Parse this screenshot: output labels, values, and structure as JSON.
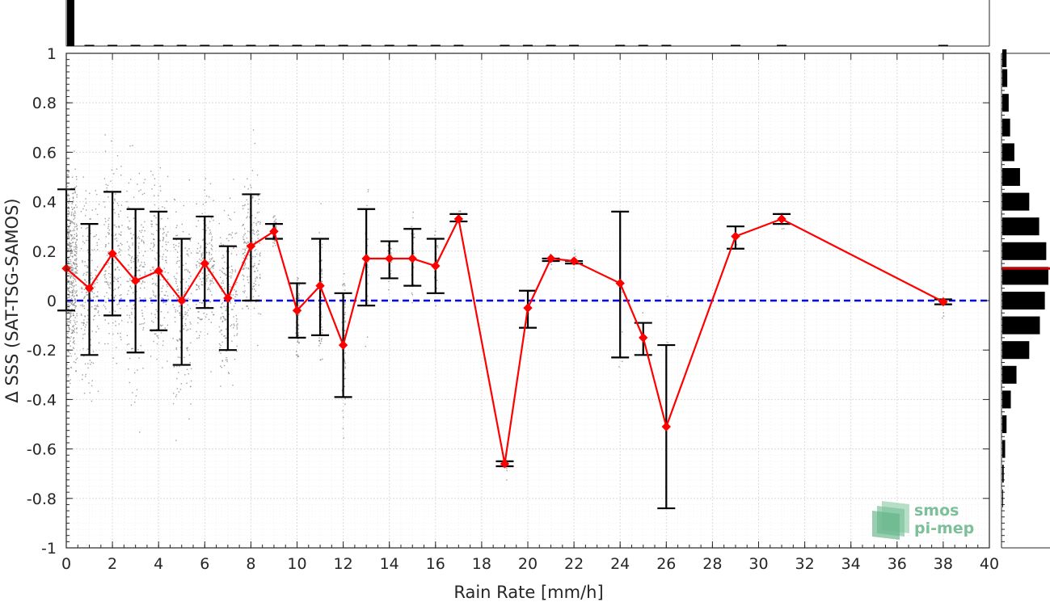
{
  "chart_data": {
    "type": "line",
    "xlabel": "Rain Rate [mm/h]",
    "ylabel": "Δ SSS (SAT-TSG-SAMOS)",
    "xlim": [
      0,
      40
    ],
    "ylim": [
      -1,
      1
    ],
    "x_ticks": [
      "0",
      "2",
      "4",
      "6",
      "8",
      "10",
      "12",
      "14",
      "16",
      "18",
      "20",
      "22",
      "24",
      "26",
      "28",
      "30",
      "32",
      "34",
      "36",
      "38",
      "40"
    ],
    "y_ticks": [
      "1",
      "0.8",
      "0.6",
      "0.4",
      "0.2",
      "0",
      "-0.2",
      "-0.4",
      "-0.6",
      "-0.8",
      "-1"
    ],
    "grid": true,
    "reference_line": {
      "y": 0,
      "color": "#0000ff",
      "style": "dashed"
    },
    "series": [
      {
        "color": "#ff0000",
        "x": [
          0,
          1,
          2,
          3,
          4,
          5,
          6,
          7,
          8,
          9,
          10,
          11,
          12,
          13,
          14,
          15,
          16,
          17,
          19,
          20,
          21,
          22,
          24,
          25,
          26,
          29,
          31,
          38
        ],
        "y": [
          0.13,
          0.05,
          0.19,
          0.08,
          0.12,
          0.0,
          0.15,
          0.01,
          0.22,
          0.28,
          -0.04,
          0.06,
          -0.18,
          0.17,
          0.17,
          0.17,
          0.14,
          0.33,
          -0.66,
          -0.03,
          0.17,
          0.16,
          0.07,
          -0.15,
          -0.51,
          0.26,
          0.33,
          -0.005
        ],
        "err_low": [
          -0.04,
          -0.22,
          -0.06,
          -0.21,
          -0.12,
          -0.26,
          -0.03,
          -0.2,
          0.0,
          0.25,
          -0.15,
          -0.14,
          -0.39,
          -0.02,
          0.09,
          0.06,
          0.03,
          0.32,
          -0.67,
          -0.11,
          0.16,
          0.15,
          -0.23,
          -0.22,
          -0.84,
          0.21,
          0.31,
          -0.015
        ],
        "err_high": [
          0.45,
          0.31,
          0.44,
          0.37,
          0.36,
          0.25,
          0.34,
          0.22,
          0.43,
          0.31,
          0.07,
          0.25,
          0.03,
          0.37,
          0.24,
          0.29,
          0.25,
          0.35,
          -0.65,
          0.04,
          0.17,
          0.16,
          0.36,
          -0.09,
          -0.18,
          0.3,
          0.35,
          0.005
        ]
      }
    ],
    "top_histogram": {
      "color": "#000000",
      "x": [
        0,
        1,
        2,
        3,
        4,
        5,
        6,
        7,
        8,
        9,
        10,
        11,
        12,
        13,
        14,
        15,
        16,
        17,
        19,
        20,
        21,
        22,
        24,
        25,
        26,
        29,
        31,
        38
      ],
      "counts": [
        1000,
        4,
        3,
        3,
        2,
        2,
        2,
        2,
        2,
        2,
        2,
        2,
        1,
        1,
        1,
        1,
        1,
        1,
        1,
        1,
        1,
        1,
        1,
        1,
        1,
        1,
        1,
        1
      ]
    },
    "right_histogram": {
      "color": "#000000",
      "median_line_color": "#cc0000",
      "median_y": 0.13,
      "bin_centers": [
        0.98,
        0.9,
        0.8,
        0.7,
        0.6,
        0.5,
        0.4,
        0.3,
        0.2,
        0.1,
        0.0,
        -0.1,
        -0.2,
        -0.3,
        -0.4,
        -0.5,
        -0.6,
        -0.7,
        -0.8
      ],
      "counts": [
        6,
        7,
        9,
        11,
        17,
        25,
        38,
        52,
        62,
        65,
        60,
        53,
        38,
        20,
        12,
        6,
        4,
        2,
        1
      ]
    }
  },
  "logo": {
    "line1": "smos",
    "line2": "pi-mep"
  },
  "colors": {
    "axis": "#262626",
    "grid": "#dedede",
    "scatter": "#808080",
    "errorbar": "#000000"
  }
}
